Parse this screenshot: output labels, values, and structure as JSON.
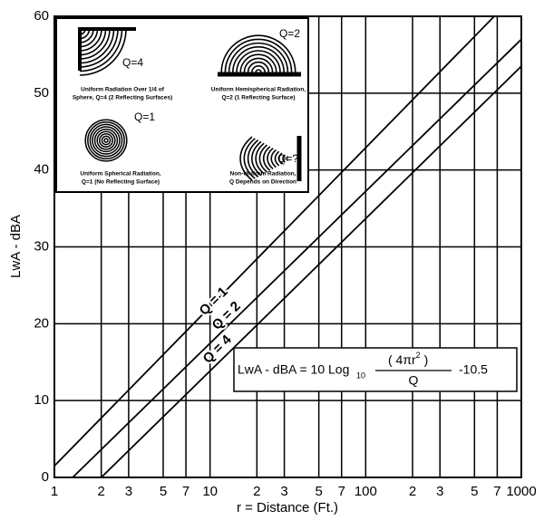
{
  "chart_data": {
    "type": "line",
    "xlabel": "r = Distance (Ft.)",
    "ylabel": "LwA - dBA",
    "xscale": "log",
    "xlim": [
      1,
      1000
    ],
    "ylim": [
      0,
      60
    ],
    "grid": true,
    "xticks": [
      1,
      2,
      3,
      5,
      7,
      10,
      {
        "value": 20,
        "label": "2"
      },
      {
        "value": 30,
        "label": "3"
      },
      {
        "value": 50,
        "label": "5"
      },
      {
        "value": 70,
        "label": "7"
      },
      100,
      {
        "value": 200,
        "label": "2"
      },
      {
        "value": 300,
        "label": "3"
      },
      {
        "value": 500,
        "label": "5"
      },
      {
        "value": 700,
        "label": "7"
      },
      1000
    ],
    "yticks": [
      0,
      10,
      20,
      30,
      40,
      50,
      60
    ],
    "series": [
      {
        "name": "Q = 1",
        "color": "#000000",
        "x": [
          1,
          670
        ],
        "values": [
          1.5,
          60
        ]
      },
      {
        "name": "Q = 2",
        "color": "#000000",
        "x": [
          1.31,
          1000
        ],
        "values": [
          0,
          57
        ]
      },
      {
        "name": "Q = 4",
        "color": "#000000",
        "x": [
          2,
          1000
        ],
        "values": [
          0,
          53.5
        ]
      }
    ],
    "formula": {
      "prefix": "LwA - dBA = 10 Log",
      "base": "10",
      "numerator": "( 4πr",
      "exponent": "2",
      "numerator_end": " )",
      "denominator": "Q",
      "suffix": "-10.5"
    },
    "inset": [
      {
        "label": "Q=4",
        "caption": [
          "Uniform Radiation Over 1/4 of",
          "Sphere, Q=4 (2 Reflecting Surfaces)"
        ]
      },
      {
        "label": "Q=2",
        "caption": [
          "Uniform Hemispherical Radiation,",
          "Q=2 (1 Reflecting Surface)"
        ]
      },
      {
        "label": "Q=1",
        "caption": [
          "Uniform Spherical Radiation,",
          "Q=1 (No Reflecting Surface)"
        ]
      },
      {
        "label": "Q=?",
        "caption": [
          "Non-Uniform Radiation,",
          "Q Depends on Direction"
        ]
      }
    ]
  }
}
